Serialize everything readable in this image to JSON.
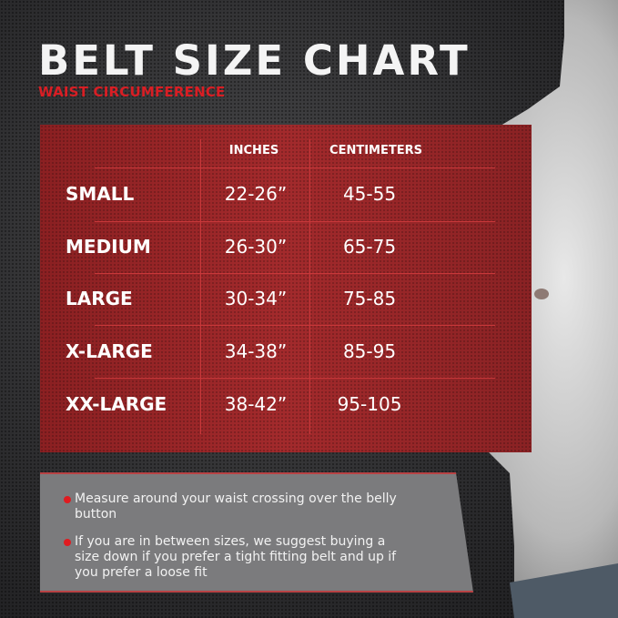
{
  "header": {
    "title": "BELT SIZE CHART",
    "subtitle": "WAIST CIRCUMFERENCE"
  },
  "table": {
    "columns": [
      "INCHES",
      "CENTIMETERS"
    ],
    "rows": [
      {
        "size": "SMALL",
        "inches": "22-26”",
        "cm": "45-55"
      },
      {
        "size": "MEDIUM",
        "inches": "26-30”",
        "cm": "65-75"
      },
      {
        "size": "LARGE",
        "inches": "30-34”",
        "cm": "75-85"
      },
      {
        "size": "X-LARGE",
        "inches": "34-38”",
        "cm": "85-95"
      },
      {
        "size": "XX-LARGE",
        "inches": "38-42”",
        "cm": "95-105"
      }
    ]
  },
  "notes": [
    "Measure around your waist crossing over the belly button",
    "If you are in between sizes, we suggest buying a size down if you prefer a tight fitting belt and up if you prefer a loose fit"
  ],
  "colors": {
    "accent": "#d81e24",
    "table_bg": "#9a2628",
    "notes_bg": "#7b7b7d"
  }
}
